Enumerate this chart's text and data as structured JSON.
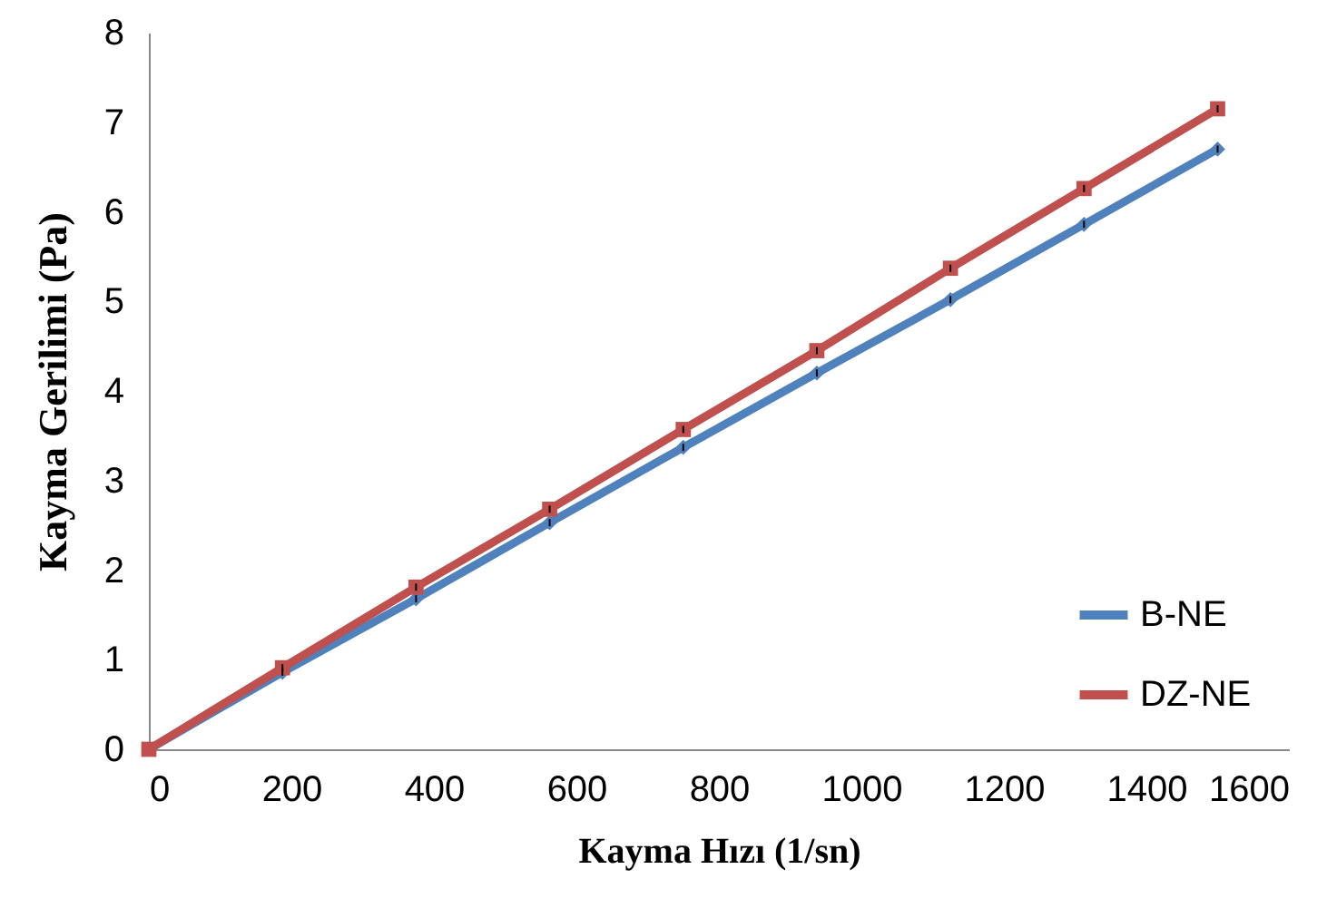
{
  "chart_data": {
    "type": "line",
    "xlabel": "Kayma Hızı (1/sn)",
    "ylabel": "Kayma Gerilimi (Pa)",
    "x": [
      0,
      187.5,
      375,
      562.5,
      750,
      937.5,
      1125,
      1312.5,
      1500
    ],
    "xlim": [
      0,
      1600
    ],
    "xticks": [
      0,
      200,
      400,
      600,
      800,
      1000,
      1200,
      1400,
      1600
    ],
    "ylim": [
      0,
      8
    ],
    "yticks": [
      0,
      1,
      2,
      3,
      4,
      5,
      6,
      7,
      8
    ],
    "grid": false,
    "legend": "bottom right",
    "series": [
      {
        "name": "B-NE",
        "color": "#4f81bd",
        "marker": "diamond",
        "values": [
          0,
          0.86,
          1.68,
          2.53,
          3.37,
          4.2,
          5.02,
          5.86,
          6.7
        ],
        "errors": [
          0,
          0.04,
          0.04,
          0.04,
          0.04,
          0.04,
          0.04,
          0.04,
          0.04
        ]
      },
      {
        "name": "DZ-NE",
        "color": "#c0504d",
        "marker": "square",
        "values": [
          0,
          0.91,
          1.81,
          2.68,
          3.57,
          4.45,
          5.37,
          6.26,
          7.15
        ],
        "errors": [
          0,
          0.04,
          0.04,
          0.04,
          0.04,
          0.04,
          0.04,
          0.04,
          0.04
        ]
      }
    ]
  }
}
